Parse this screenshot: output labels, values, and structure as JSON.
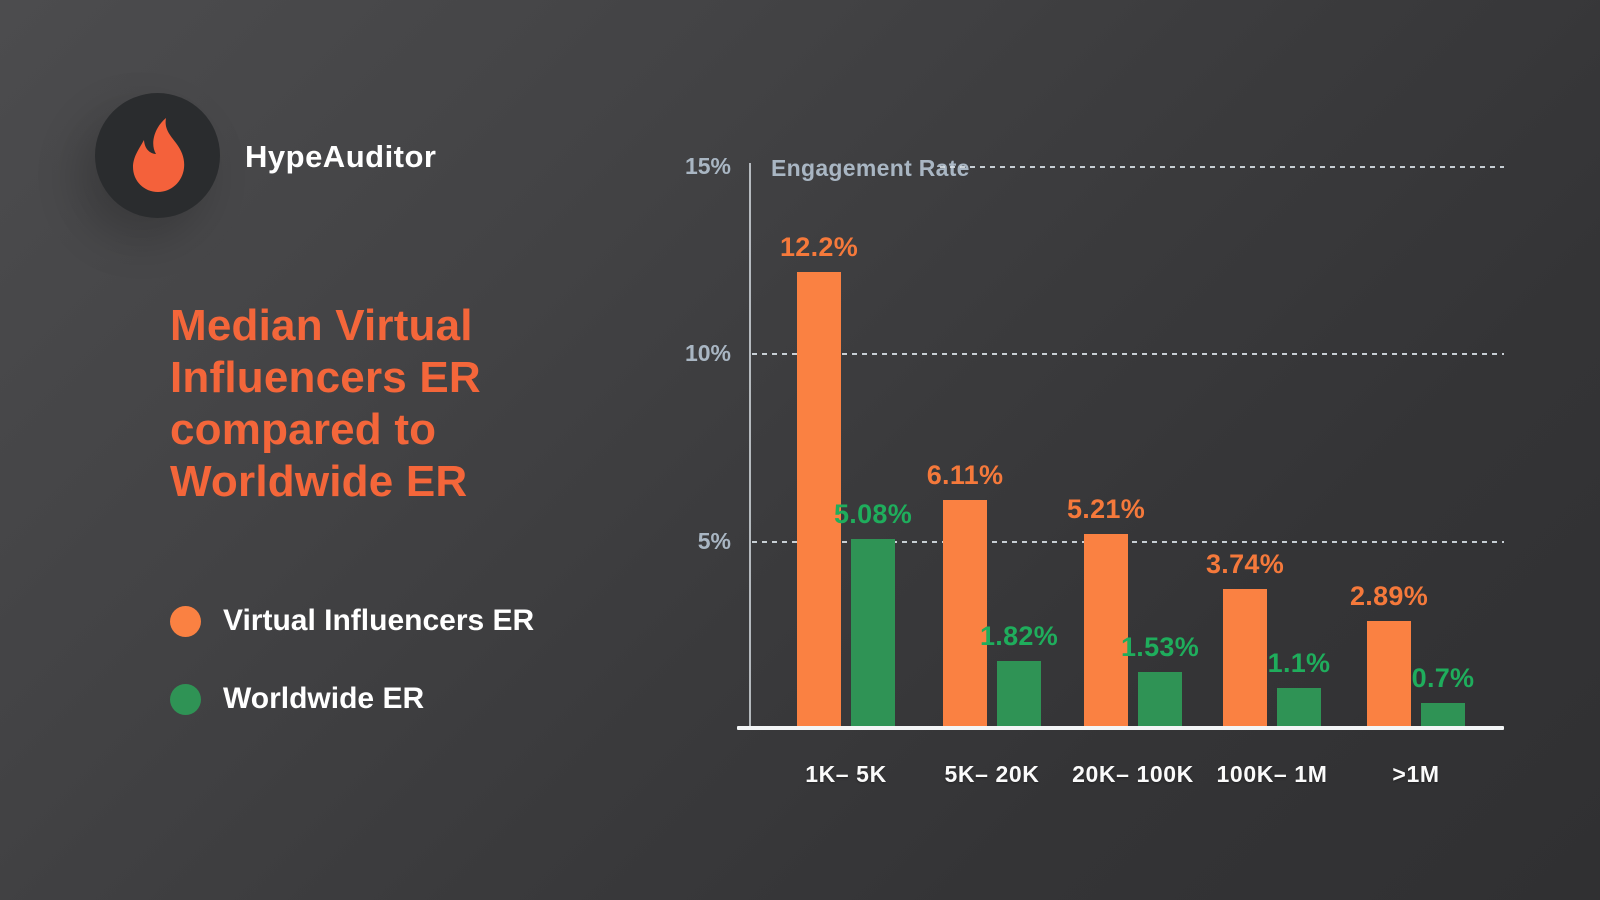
{
  "header": {
    "brand": "HypeAuditor",
    "title": "Median Virtual\nInfluencers ER\ncompared to\nWorldwide ER"
  },
  "legend": {
    "items": [
      {
        "label": "Virtual Influencers ER",
        "color": "#FA8142"
      },
      {
        "label": "Worldwide ER",
        "color": "#2F9355"
      }
    ]
  },
  "chart_data": {
    "type": "bar",
    "title": "Engagement Rate",
    "categories": [
      "1K– 5K",
      "5K– 20K",
      "20K– 100K",
      "100K– 1M",
      ">1M"
    ],
    "series": [
      {
        "name": "Virtual Influencers ER",
        "color": "#FA8142",
        "label_color": "#F5793B",
        "values": [
          12.2,
          6.11,
          5.21,
          3.74,
          2.89
        ],
        "labels": [
          "12.2%",
          "6.11%",
          "5.21%",
          "3.74%",
          "2.89%"
        ]
      },
      {
        "name": "Worldwide ER",
        "color": "#2F9355",
        "label_color": "#1FAD5C",
        "values": [
          5.08,
          1.82,
          1.53,
          1.1,
          0.7
        ],
        "labels": [
          "5.08%",
          "1.82%",
          "1.53%",
          "1.1%",
          "0.7%"
        ]
      }
    ],
    "y_axis": {
      "label": "Engagement Rate",
      "ticks": [
        {
          "label": "15%",
          "value": 15
        },
        {
          "label": "10%",
          "value": 10
        },
        {
          "label": "5%",
          "value": 5
        }
      ],
      "range": [
        0,
        15
      ]
    },
    "grid": "dashed horizontal lines",
    "legend_position": "left panel",
    "xlabel": "",
    "ylabel": "Engagement Rate"
  },
  "colors": {
    "background_top_left": "#4C4C4E",
    "background_bottom_right": "#303032",
    "title_orange": "#F4663A",
    "flame_orange": "#F4613B",
    "bar_orange": "#FA8142",
    "bar_green": "#2F9355",
    "value_label_orange": "#F5793B",
    "value_label_green": "#1FAD5C",
    "axis_text": "#A9B6C3",
    "text_white": "#FFFFFF",
    "logo_circle": "#2A2C2E"
  },
  "icons": {
    "flame": "flame-icon",
    "legend_dot_orange": "orange-dot-icon",
    "legend_dot_green": "green-dot-icon"
  }
}
